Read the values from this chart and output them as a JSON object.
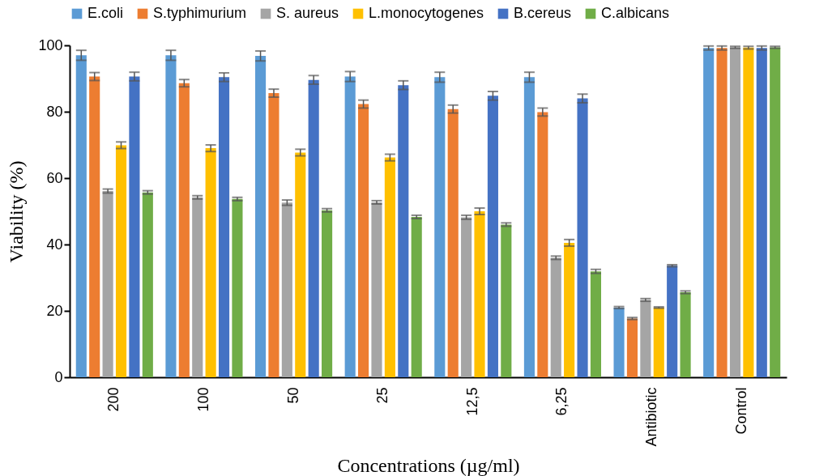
{
  "chart_data": {
    "type": "bar",
    "xlabel": "Concentrations (µg/ml)",
    "ylabel": "Viability (%)",
    "categories": [
      "200",
      "100",
      "50",
      "25",
      "12,5",
      "6,25",
      "Antibiotic",
      "Control"
    ],
    "series": [
      {
        "name": "E.coli",
        "color": "#5b9bd5",
        "values": [
          97,
          97,
          96.8,
          90.6,
          90.4,
          90.4,
          21,
          99.2
        ],
        "errors": [
          1.5,
          1.5,
          1.5,
          1.5,
          1.5,
          1.5,
          0.3,
          0.6
        ]
      },
      {
        "name": "S.typhimurium",
        "color": "#ed7d31",
        "values": [
          90.6,
          88.6,
          85.6,
          82.3,
          80.8,
          79.9,
          17.7,
          99.2
        ],
        "errors": [
          1.2,
          1.1,
          1.2,
          1.2,
          1.2,
          1.2,
          0.3,
          0.6
        ]
      },
      {
        "name": "S. aureus",
        "color": "#a5a5a5",
        "values": [
          56.1,
          54.2,
          52.6,
          52.7,
          48.2,
          36,
          23.3,
          99.4
        ],
        "errors": [
          0.6,
          0.5,
          0.8,
          0.5,
          0.6,
          0.5,
          0.4,
          0.3
        ]
      },
      {
        "name": "L.monocytogenes",
        "color": "#ffc000",
        "values": [
          69.9,
          69,
          67.7,
          66.2,
          50,
          40.5,
          21,
          99.3
        ],
        "errors": [
          1,
          1,
          1,
          1,
          1,
          1,
          0.2,
          0.4
        ]
      },
      {
        "name": "B.cereus",
        "color": "#4472c4",
        "values": [
          90.6,
          90.4,
          89.6,
          88,
          84.8,
          84,
          33.6,
          99.2
        ],
        "errors": [
          1.3,
          1.3,
          1.3,
          1.3,
          1.3,
          1.3,
          0.3,
          0.6
        ]
      },
      {
        "name": "C.albicans",
        "color": "#70ad47",
        "values": [
          55.7,
          53.7,
          50.3,
          48.3,
          46,
          31.9,
          25.6,
          99.4
        ],
        "errors": [
          0.5,
          0.5,
          0.5,
          0.5,
          0.5,
          0.6,
          0.4,
          0.3
        ]
      }
    ],
    "ylim": [
      0,
      100
    ],
    "yticks": [
      0,
      20,
      40,
      60,
      80,
      100
    ],
    "grid": false,
    "legend": "top"
  }
}
